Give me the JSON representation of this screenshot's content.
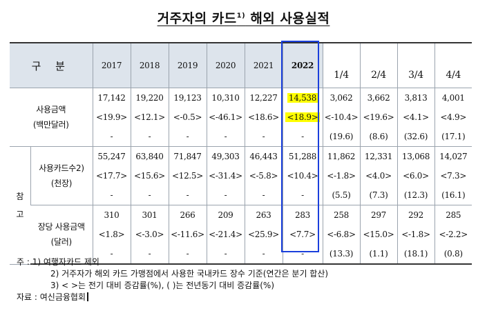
{
  "title": "거주자의 카드",
  "title_sup": "1)",
  "title_suffix": " 해외 사용실적",
  "header": {
    "gubun": "구 분",
    "years": [
      "2017",
      "2018",
      "2019",
      "2020",
      "2021",
      "2022"
    ],
    "quarters": [
      "1/4",
      "2/4",
      "3/4",
      "4/4"
    ]
  },
  "rows": [
    {
      "label1": "사용금액",
      "label2": "(백만달러)",
      "values": [
        [
          "17,142",
          "<19.9>",
          "-"
        ],
        [
          "19,220",
          "<12.1>",
          "-"
        ],
        [
          "19,123",
          "<-0.5>",
          "-"
        ],
        [
          "10,310",
          "<-46.1>",
          "-"
        ],
        [
          "12,227",
          "<18.6>",
          "-"
        ],
        [
          "14,538",
          "<18.9>",
          "-"
        ],
        [
          "3,062",
          "<-10.4>",
          "(19.6)"
        ],
        [
          "3,662",
          "<19.6>",
          "(8.6)"
        ],
        [
          "3,813",
          "<4.1>",
          "(32.6)"
        ],
        [
          "4,001",
          "<4.9>",
          "(17.1)"
        ]
      ]
    },
    {
      "label1": "사용카드수2)",
      "label2": "(천장)",
      "values": [
        [
          "55,247",
          "<17.7>",
          "-"
        ],
        [
          "63,840",
          "<15.6>",
          "-"
        ],
        [
          "71,847",
          "<12.5>",
          "-"
        ],
        [
          "49,303",
          "<-31.4>",
          "-"
        ],
        [
          "46,443",
          "<-5.8>",
          "-"
        ],
        [
          "51,288",
          "<10.4>",
          "-"
        ],
        [
          "11,862",
          "<-1.8>",
          "(5.5)"
        ],
        [
          "12,331",
          "<4.0>",
          "(7.3)"
        ],
        [
          "13,068",
          "<6.0>",
          "(12.3)"
        ],
        [
          "14,027",
          "<7.3>",
          "(16.1)"
        ]
      ]
    },
    {
      "label1": "장당 사용금액",
      "label2": "(달러)",
      "values": [
        [
          "310",
          "<1.8>",
          "-"
        ],
        [
          "301",
          "<-3.0>",
          "-"
        ],
        [
          "266",
          "<-11.6>",
          "-"
        ],
        [
          "209",
          "<-21.4>",
          "-"
        ],
        [
          "263",
          "<25.9>",
          "-"
        ],
        [
          "283",
          "<7.7>",
          "-"
        ],
        [
          "258",
          "<-6.8>",
          "(13.3)"
        ],
        [
          "297",
          "<15.0>",
          "(1.1)"
        ],
        [
          "292",
          "<-1.8>",
          "(18.1)"
        ],
        [
          "285",
          "<-2.2>",
          "(0.8)"
        ]
      ]
    }
  ],
  "side_label": [
    "참",
    "고"
  ],
  "notes": [
    "주 : 1) 여행자카드 제외",
    "2) 거주자가 해외 카드 가맹점에서 사용한 국내카드 장수 기준(연간은 분기 합산)",
    "3) <    >는 전기 대비 증감률(%), (    )는 전년동기 대비 증감률(%)",
    "자료 : 여신금융협회"
  ],
  "colors": {
    "header_bg": "#dde4ec",
    "highlight": "#ffff00",
    "box": "#1a3fdc"
  }
}
